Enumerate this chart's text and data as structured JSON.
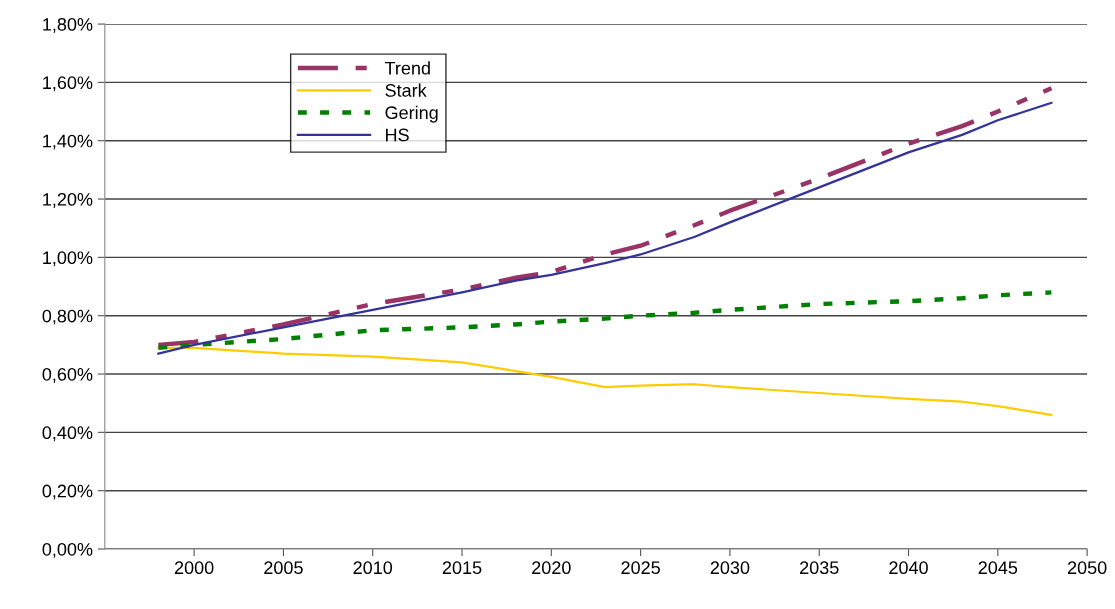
{
  "chart_data": {
    "type": "line",
    "x": [
      1998,
      2000,
      2005,
      2010,
      2015,
      2018,
      2020,
      2023,
      2025,
      2028,
      2030,
      2035,
      2040,
      2043,
      2045,
      2048
    ],
    "series": [
      {
        "name": "Trend",
        "color": "#993366",
        "line_style": "dashed",
        "values": [
          0.7,
          0.71,
          0.77,
          0.84,
          0.89,
          0.93,
          0.95,
          1.01,
          1.04,
          1.11,
          1.16,
          1.27,
          1.39,
          1.45,
          1.5,
          1.58
        ]
      },
      {
        "name": "Stark",
        "color": "#ffcc00",
        "line_style": "solid",
        "values": [
          0.69,
          0.69,
          0.67,
          0.66,
          0.64,
          0.61,
          0.59,
          0.555,
          0.56,
          0.565,
          0.555,
          0.535,
          0.515,
          0.505,
          0.49,
          0.46
        ]
      },
      {
        "name": "Gering",
        "color": "#008000",
        "line_style": "dotted",
        "values": [
          0.69,
          0.7,
          0.72,
          0.75,
          0.76,
          0.77,
          0.78,
          0.79,
          0.8,
          0.81,
          0.82,
          0.84,
          0.85,
          0.86,
          0.87,
          0.88
        ]
      },
      {
        "name": "HS",
        "color": "#333399",
        "line_style": "solid",
        "values": [
          0.67,
          0.7,
          0.76,
          0.82,
          0.88,
          0.92,
          0.94,
          0.98,
          1.01,
          1.07,
          1.12,
          1.24,
          1.36,
          1.42,
          1.47,
          1.53
        ]
      }
    ],
    "xlim": [
      1995,
      2050
    ],
    "xticks": [
      2000,
      2005,
      2010,
      2015,
      2020,
      2025,
      2030,
      2035,
      2040,
      2045,
      2050
    ],
    "ylim": [
      0,
      1.8
    ],
    "yticks": [
      {
        "value": 0,
        "label": "0,00%"
      },
      {
        "value": 0.2,
        "label": "0,20%"
      },
      {
        "value": 0.4,
        "label": "0,40%"
      },
      {
        "value": 0.6,
        "label": "0,60%"
      },
      {
        "value": 0.8,
        "label": "0,80%"
      },
      {
        "value": 1.0,
        "label": "1,00%"
      },
      {
        "value": 1.2,
        "label": "1,20%"
      },
      {
        "value": 1.4,
        "label": "1,40%"
      },
      {
        "value": 1.6,
        "label": "1,60%"
      },
      {
        "value": 1.8,
        "label": "1,80%"
      }
    ],
    "grid": "y",
    "legend": "top left",
    "marker": "none"
  }
}
